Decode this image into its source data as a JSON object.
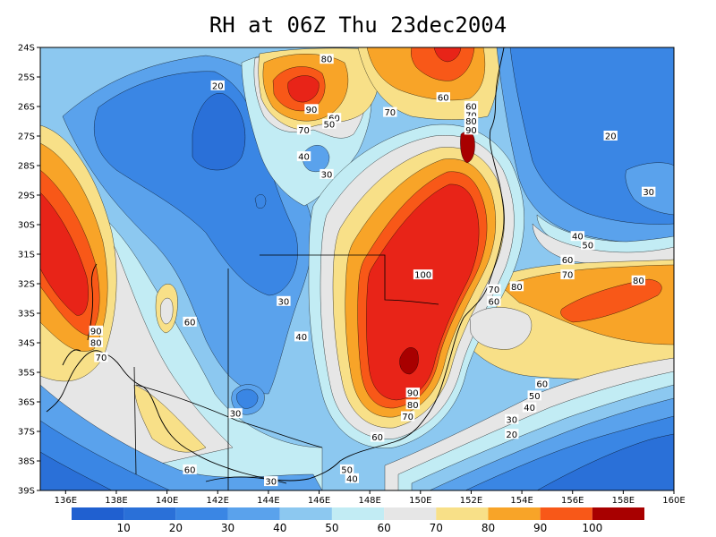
{
  "title": "RH at 06Z Thu 23dec2004",
  "colors": {
    "band_0_10": "#2060d0",
    "band_10_20": "#2a70d8",
    "band_20_30": "#3a86e4",
    "band_30_40": "#5aa2ec",
    "band_40_50": "#8cc8f0",
    "band_50_60": "#c2ecf4",
    "band_60_70": "#e6e6e6",
    "band_70_80": "#f8e088",
    "band_80_90": "#f8a428",
    "band_90_100": "#f85818",
    "band_100_up": "#e82418",
    "band_top": "#a80000",
    "coast": "#000000"
  },
  "chart_data": {
    "type": "heatmap",
    "variable": "RH",
    "lon_range": [
      135,
      160
    ],
    "lat_range": [
      -39,
      -24
    ],
    "x_ticks": [
      "136E",
      "138E",
      "140E",
      "142E",
      "144E",
      "146E",
      "148E",
      "150E",
      "152E",
      "154E",
      "156E",
      "158E",
      "160E"
    ],
    "y_ticks": [
      "24S",
      "25S",
      "26S",
      "27S",
      "28S",
      "29S",
      "30S",
      "31S",
      "32S",
      "33S",
      "34S",
      "35S",
      "36S",
      "37S",
      "38S",
      "39S"
    ],
    "colorbar_levels": [
      "10",
      "20",
      "30",
      "40",
      "50",
      "60",
      "70",
      "80",
      "90",
      "100"
    ],
    "contour_labels": [
      {
        "text": "20",
        "lon": 142.0,
        "lat": -25.3
      },
      {
        "text": "80",
        "lon": 146.3,
        "lat": -24.4
      },
      {
        "text": "90",
        "lon": 145.7,
        "lat": -26.1
      },
      {
        "text": "70",
        "lon": 145.4,
        "lat": -26.8
      },
      {
        "text": "60",
        "lon": 146.6,
        "lat": -26.4
      },
      {
        "text": "50",
        "lon": 146.4,
        "lat": -26.6
      },
      {
        "text": "40",
        "lon": 145.4,
        "lat": -27.7
      },
      {
        "text": "30",
        "lon": 146.3,
        "lat": -28.3
      },
      {
        "text": "70",
        "lon": 148.8,
        "lat": -26.2
      },
      {
        "text": "60",
        "lon": 150.9,
        "lat": -25.7
      },
      {
        "text": "60",
        "lon": 152.0,
        "lat": -26.0
      },
      {
        "text": "70",
        "lon": 152.0,
        "lat": -26.3
      },
      {
        "text": "80",
        "lon": 152.0,
        "lat": -26.5
      },
      {
        "text": "90",
        "lon": 152.0,
        "lat": -26.8
      },
      {
        "text": "20",
        "lon": 157.5,
        "lat": -27.0
      },
      {
        "text": "30",
        "lon": 159.0,
        "lat": -28.9
      },
      {
        "text": "40",
        "lon": 156.2,
        "lat": -30.4
      },
      {
        "text": "50",
        "lon": 156.6,
        "lat": -30.7
      },
      {
        "text": "60",
        "lon": 155.8,
        "lat": -31.2
      },
      {
        "text": "70",
        "lon": 155.8,
        "lat": -31.7
      },
      {
        "text": "80",
        "lon": 158.6,
        "lat": -31.9
      },
      {
        "text": "100",
        "lon": 150.1,
        "lat": -31.7
      },
      {
        "text": "80",
        "lon": 153.8,
        "lat": -32.1
      },
      {
        "text": "70",
        "lon": 152.9,
        "lat": -32.2
      },
      {
        "text": "60",
        "lon": 152.9,
        "lat": -32.6
      },
      {
        "text": "30",
        "lon": 144.6,
        "lat": -32.6
      },
      {
        "text": "60",
        "lon": 140.9,
        "lat": -33.3
      },
      {
        "text": "40",
        "lon": 145.3,
        "lat": -33.8
      },
      {
        "text": "90",
        "lon": 137.2,
        "lat": -33.6
      },
      {
        "text": "80",
        "lon": 137.2,
        "lat": -34.0
      },
      {
        "text": "70",
        "lon": 137.4,
        "lat": -34.5
      },
      {
        "text": "90",
        "lon": 149.7,
        "lat": -35.7
      },
      {
        "text": "80",
        "lon": 149.7,
        "lat": -36.1
      },
      {
        "text": "70",
        "lon": 149.5,
        "lat": -36.5
      },
      {
        "text": "60",
        "lon": 154.8,
        "lat": -35.4
      },
      {
        "text": "50",
        "lon": 154.5,
        "lat": -35.8
      },
      {
        "text": "40",
        "lon": 154.3,
        "lat": -36.2
      },
      {
        "text": "30",
        "lon": 153.6,
        "lat": -36.6
      },
      {
        "text": "20",
        "lon": 153.6,
        "lat": -37.1
      },
      {
        "text": "30",
        "lon": 142.7,
        "lat": -36.4
      },
      {
        "text": "60",
        "lon": 148.3,
        "lat": -37.2
      },
      {
        "text": "60",
        "lon": 140.9,
        "lat": -38.3
      },
      {
        "text": "50",
        "lon": 147.1,
        "lat": -38.3
      },
      {
        "text": "40",
        "lon": 147.3,
        "lat": -38.6
      },
      {
        "text": "30",
        "lon": 144.1,
        "lat": -38.7
      }
    ]
  }
}
